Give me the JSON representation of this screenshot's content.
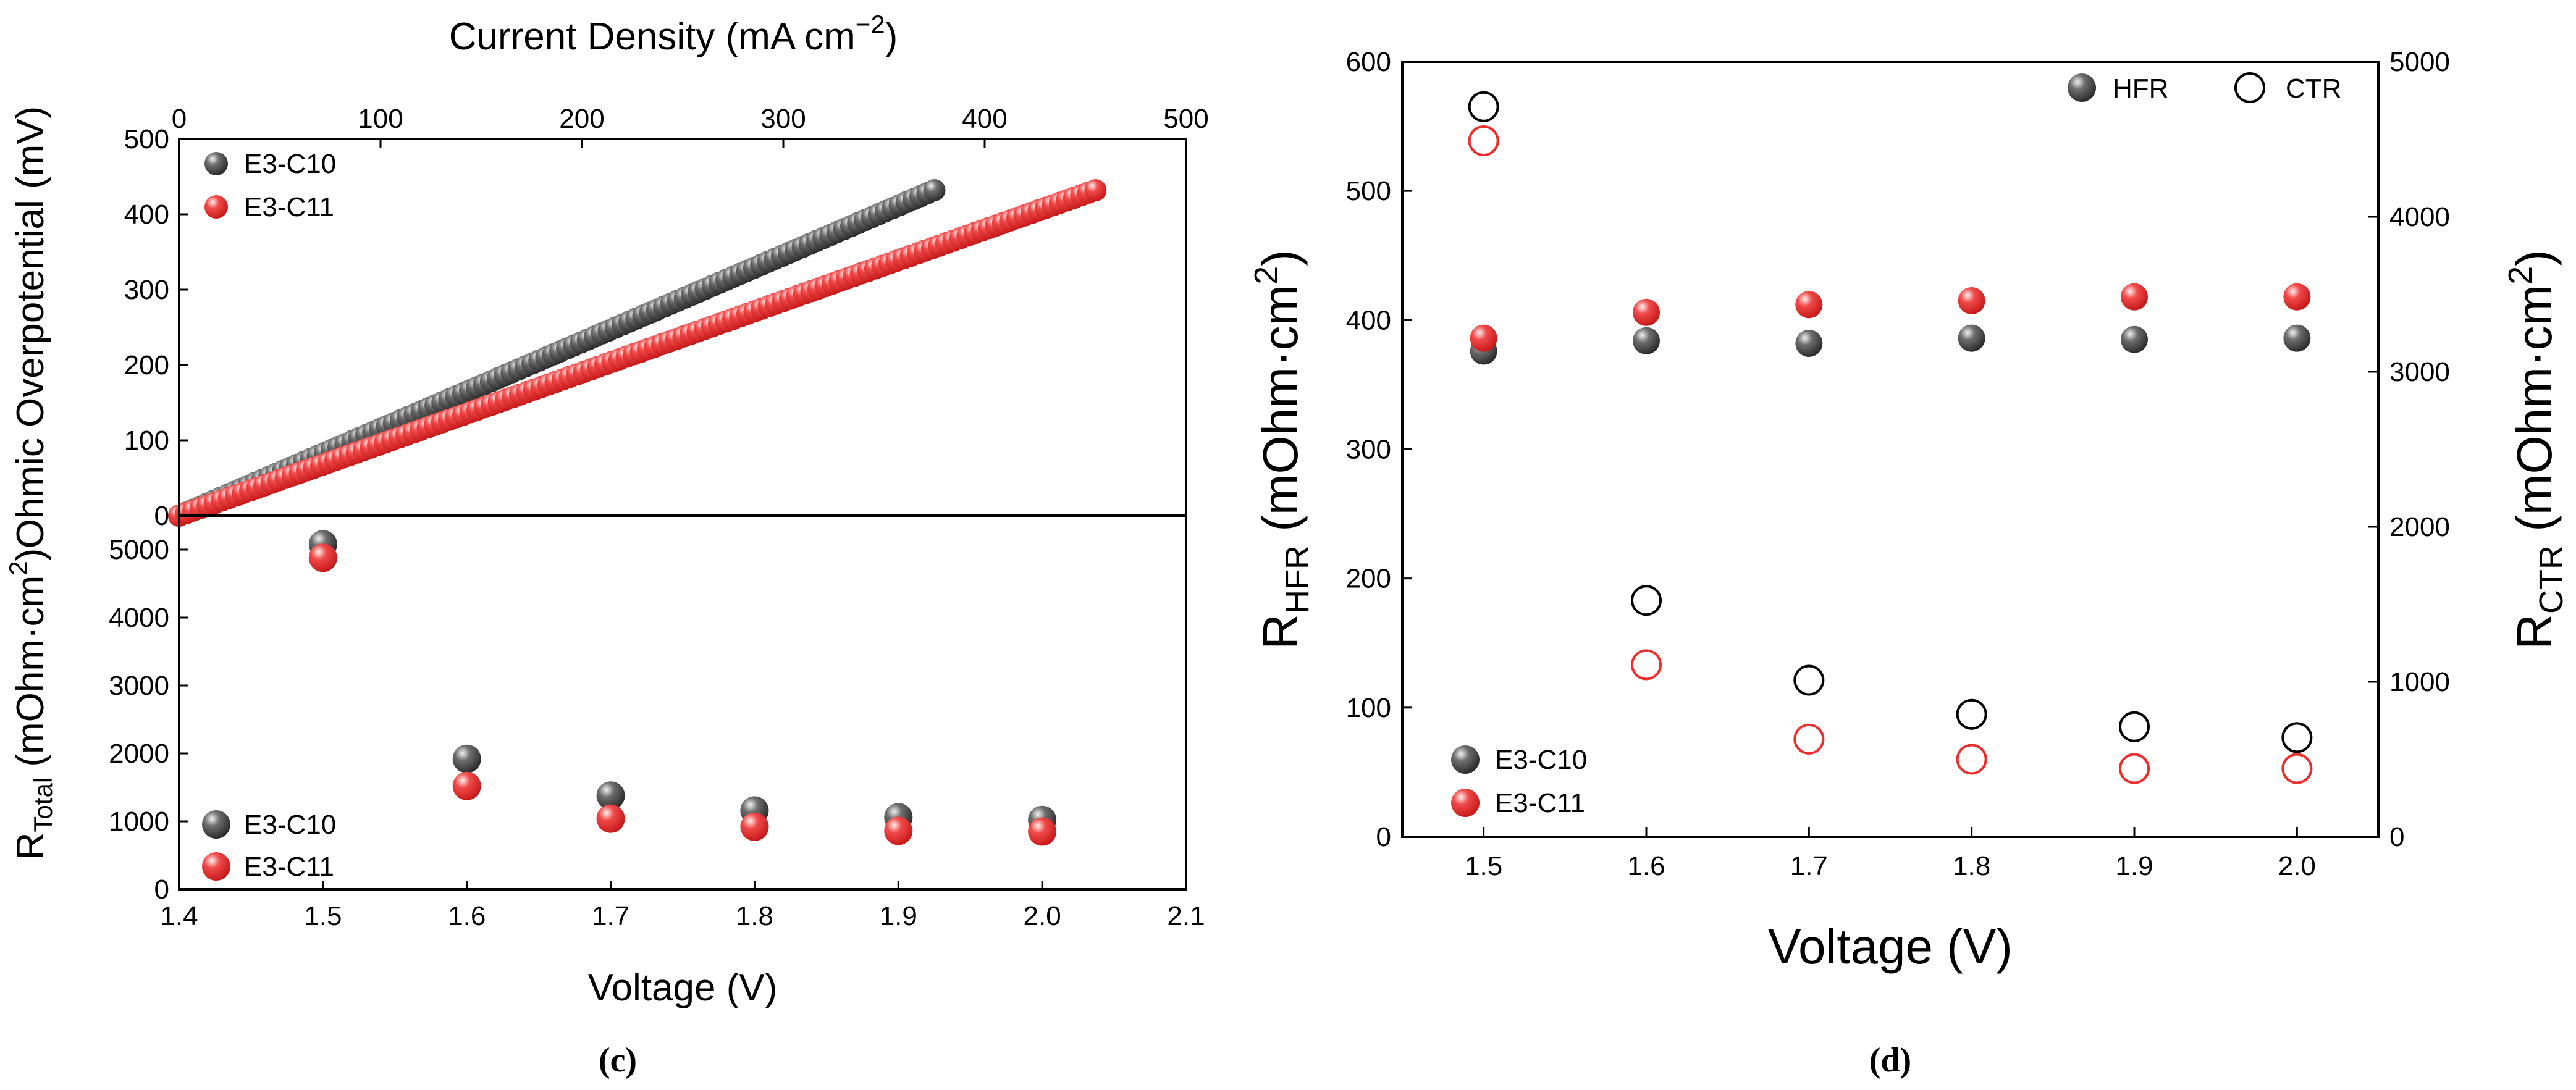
{
  "colors": {
    "E3-C10": "#4a4a4a",
    "E3-C11": "#ee2d2d",
    "axis": "#000000"
  },
  "icons": {
    "filled_marker": "shaded-sphere",
    "open_marker": "hollow-circle"
  },
  "panels": {
    "c_label": "(c)",
    "d_label": "(d)"
  },
  "chart_data": [
    {
      "id": "c-top",
      "type": "scatter",
      "title": "",
      "xlabel_top": "Current Density (mA cm−2)",
      "xlabel_top_base": "Current Density (mA cm",
      "xlabel_top_sup": "−2",
      "xlabel_top_close": ")",
      "xlim_top": [
        0,
        500
      ],
      "xticks_top": [
        0,
        100,
        200,
        300,
        400,
        500
      ],
      "ylabel": "Ohmic Overpotential (mV)",
      "ylim": [
        0,
        500
      ],
      "yticks": [
        0,
        100,
        200,
        300,
        400,
        500
      ],
      "legend_position": "top-left",
      "series": [
        {
          "name": "E3-C10",
          "x_start": 0,
          "x_end": 375,
          "y_start": 0,
          "y_end": 432,
          "n_points": 110
        },
        {
          "name": "E3-C11",
          "x_start": 0,
          "x_end": 455,
          "y_start": 0,
          "y_end": 432,
          "n_points": 130
        }
      ]
    },
    {
      "id": "c-bottom",
      "type": "scatter",
      "title": "",
      "xlabel": "Voltage (V)",
      "xlim": [
        1.4,
        2.1
      ],
      "xticks": [
        1.4,
        1.5,
        1.6,
        1.7,
        1.8,
        1.9,
        2.0,
        2.1
      ],
      "ylabel": "RTotal (mOhm·cm2)",
      "ylabel_parts": {
        "r": "R",
        "sub": "Total",
        "mid": " (mOhm·cm",
        "sup": "2",
        "end": ")"
      },
      "ylim": [
        0,
        5500
      ],
      "yticks": [
        0,
        1000,
        2000,
        3000,
        4000,
        5000
      ],
      "legend_position": "bottom-left",
      "x": [
        1.5,
        1.6,
        1.7,
        1.8,
        1.9,
        2.0
      ],
      "series": [
        {
          "name": "E3-C10",
          "values": [
            5080,
            1920,
            1380,
            1160,
            1060,
            1020
          ]
        },
        {
          "name": "E3-C11",
          "values": [
            4880,
            1520,
            1040,
            920,
            860,
            850
          ]
        }
      ]
    },
    {
      "id": "d",
      "type": "scatter",
      "title": "",
      "xlabel": "Voltage (V)",
      "xlim": [
        1.45,
        2.05
      ],
      "xticks": [
        1.5,
        1.6,
        1.7,
        1.8,
        1.9,
        2.0
      ],
      "ylabel_left": "RHFR (mOhm·cm2)",
      "ylabel_left_parts": {
        "r": "R",
        "sub": "HFR",
        "mid": " (mOhm·cm",
        "sup": "2",
        "end": ")"
      },
      "ylabel_right": "RCTR (mOhm·cm2)",
      "ylabel_right_parts": {
        "r": "R",
        "sub": "CTR",
        "mid": " (mOhm·cm",
        "sup": "2",
        "end": ")"
      },
      "ylim_left": [
        0,
        600
      ],
      "yticks_left": [
        0,
        100,
        200,
        300,
        400,
        500,
        600
      ],
      "ylim_right": [
        0,
        5000
      ],
      "yticks_right": [
        0,
        1000,
        2000,
        3000,
        4000,
        5000
      ],
      "legend_type": {
        "position": "top-right",
        "items": [
          "HFR",
          "CTR"
        ]
      },
      "legend_sample": {
        "position": "bottom-left",
        "items": [
          "E3-C10",
          "E3-C11"
        ]
      },
      "x": [
        1.5,
        1.6,
        1.7,
        1.8,
        1.9,
        2.0
      ],
      "series": [
        {
          "name": "E3-C10",
          "kind": "HFR",
          "axis": "left",
          "values": [
            376,
            384,
            382,
            386,
            385,
            386
          ]
        },
        {
          "name": "E3-C11",
          "kind": "HFR",
          "axis": "left",
          "values": [
            386,
            406,
            412,
            415,
            418,
            418
          ]
        },
        {
          "name": "E3-C10",
          "kind": "CTR",
          "axis": "right",
          "values": [
            4710,
            1525,
            1010,
            790,
            710,
            640
          ]
        },
        {
          "name": "E3-C11",
          "kind": "CTR",
          "axis": "right",
          "values": [
            4490,
            1110,
            630,
            500,
            440,
            440
          ]
        }
      ]
    }
  ]
}
